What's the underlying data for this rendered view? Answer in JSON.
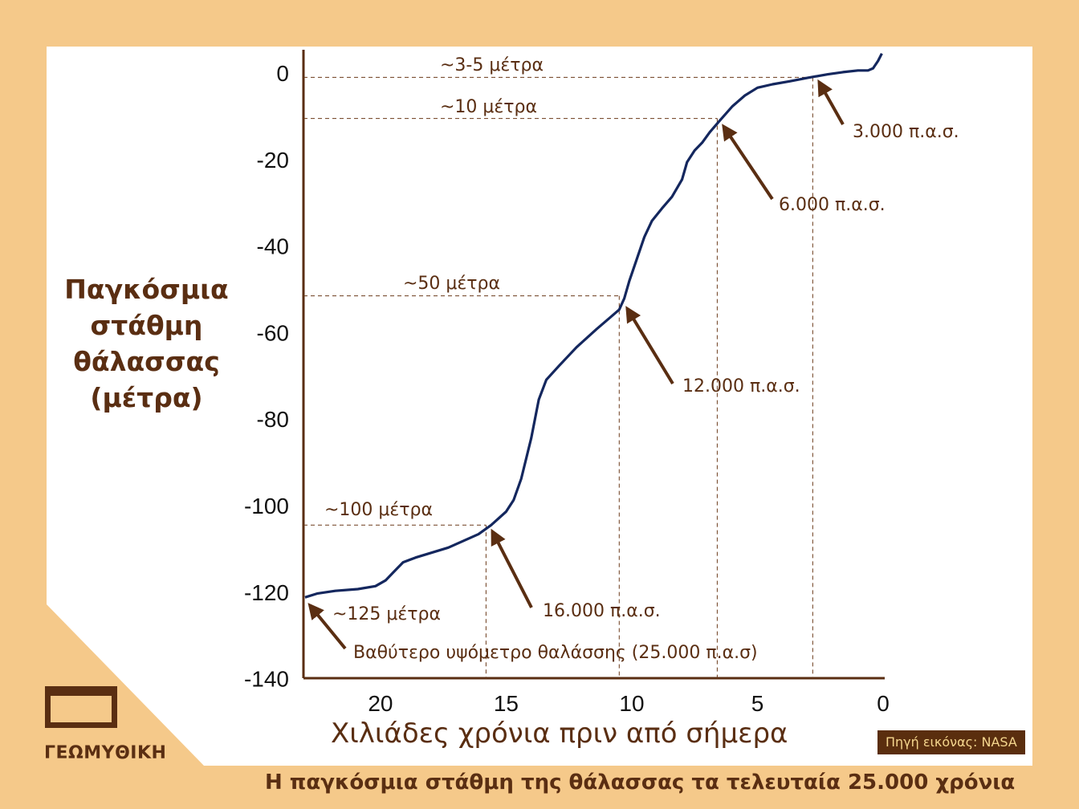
{
  "chart_data": {
    "type": "line",
    "ylabel_lines": [
      "Παγκόσμια",
      "στάθμη",
      "θάλασσας",
      "(μέτρα)"
    ],
    "xlabel": "Χιλιάδες χρόνια πριν από σήμερα",
    "xlim": [
      23,
      0
    ],
    "ylim": [
      -140,
      5
    ],
    "x_ticks": [
      20,
      15,
      10,
      5,
      0
    ],
    "y_ticks": [
      0,
      -20,
      -40,
      -60,
      -80,
      -100,
      -120,
      -140
    ],
    "series": [
      {
        "color": "#14275e",
        "points": [
          [
            23.0,
            -121.2
          ],
          [
            22.5,
            -120.3
          ],
          [
            21.8,
            -119.7
          ],
          [
            20.9,
            -119.3
          ],
          [
            20.2,
            -118.6
          ],
          [
            19.8,
            -117.3
          ],
          [
            19.4,
            -114.9
          ],
          [
            19.1,
            -113.1
          ],
          [
            18.6,
            -112.0
          ],
          [
            17.3,
            -109.7
          ],
          [
            16.1,
            -106.6
          ],
          [
            15.6,
            -104.5
          ],
          [
            15.0,
            -101.4
          ],
          [
            14.7,
            -98.7
          ],
          [
            14.4,
            -93.8
          ],
          [
            14.0,
            -84.4
          ],
          [
            13.7,
            -75.5
          ],
          [
            13.4,
            -70.9
          ],
          [
            12.9,
            -67.7
          ],
          [
            12.2,
            -63.4
          ],
          [
            11.4,
            -59.2
          ],
          [
            10.8,
            -56.2
          ],
          [
            10.5,
            -54.7
          ],
          [
            10.3,
            -52.1
          ],
          [
            10.1,
            -48.1
          ],
          [
            9.8,
            -43.0
          ],
          [
            9.5,
            -37.9
          ],
          [
            9.2,
            -34.2
          ],
          [
            8.8,
            -31.3
          ],
          [
            8.4,
            -28.6
          ],
          [
            8.0,
            -24.6
          ],
          [
            7.8,
            -20.6
          ],
          [
            7.5,
            -17.9
          ],
          [
            7.2,
            -16.1
          ],
          [
            6.9,
            -13.7
          ],
          [
            6.5,
            -11.0
          ],
          [
            6.0,
            -7.7
          ],
          [
            5.5,
            -5.2
          ],
          [
            5.0,
            -3.4
          ],
          [
            4.4,
            -2.6
          ],
          [
            3.7,
            -1.9
          ],
          [
            3.0,
            -1.1
          ],
          [
            2.2,
            -0.3
          ],
          [
            1.6,
            0.2
          ],
          [
            1.0,
            0.6
          ],
          [
            0.6,
            0.6
          ],
          [
            0.4,
            1.1
          ],
          [
            0.2,
            2.8
          ],
          [
            0.05,
            4.5
          ]
        ]
      }
    ],
    "reference_lines": [
      {
        "label": "~3-5 μέτρα",
        "x": 2.8,
        "y": -1
      },
      {
        "label": "~10 μέτρα",
        "x": 6.6,
        "y": -10.5
      },
      {
        "label": "~50 μέτρα",
        "x": 10.5,
        "y": -51.5
      },
      {
        "label": "~100 μέτρα",
        "x": 15.8,
        "y": -104.5
      }
    ],
    "annotations": [
      {
        "text": "3.000 π.α.σ.",
        "x": 2.8,
        "y": -1
      },
      {
        "text": "6.000 π.α.σ.",
        "x": 6.6,
        "y": -10.5
      },
      {
        "text": "12.000 π.α.σ.",
        "x": 10.5,
        "y": -51.5
      },
      {
        "text": "16.000 π.α.σ.",
        "x": 15.8,
        "y": -104.5
      },
      {
        "text": "~125 μέτρα",
        "x": 23.0,
        "y": -121.2
      },
      {
        "text": "Βαθύτερο υψόμετρο θαλάσσης (25.000 π.α.σ)",
        "x": 23.0,
        "y": -121.2
      }
    ]
  },
  "source_label": "Πηγή εικόνας: NASA",
  "logo_text": "ΓΕΩΜΥΘΙΚΗ",
  "caption": "Η παγκόσμια στάθμη της θάλασσας τα τελευταία 25.000 χρόνια"
}
